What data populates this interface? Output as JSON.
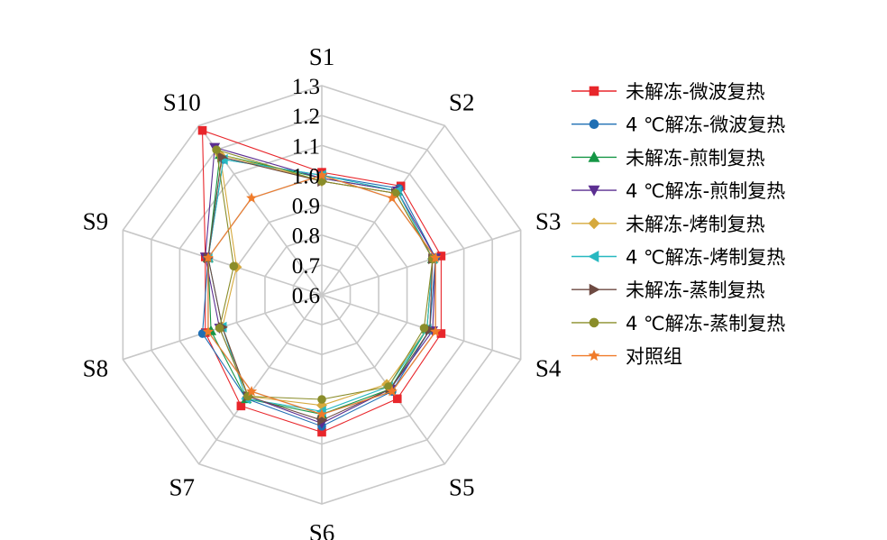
{
  "chart_data": {
    "type": "radar",
    "title": "",
    "categories": [
      "S1",
      "S2",
      "S3",
      "S4",
      "S5",
      "S6",
      "S7",
      "S8",
      "S9",
      "S10"
    ],
    "rlim": [
      0.6,
      1.3
    ],
    "tick_labels": [
      "0.6",
      "0.7",
      "0.8",
      "0.9",
      "1.0",
      "1.1",
      "1.2",
      "1.3"
    ],
    "tick_values": [
      0.6,
      0.7,
      0.8,
      0.9,
      1.0,
      1.1,
      1.2,
      1.3
    ],
    "grid": true,
    "legend_position": "right",
    "series": [
      {
        "name": "未解冻-微波复热",
        "color": "#e8262b",
        "marker": "square",
        "values": [
          1.01,
          1.05,
          1.02,
          1.02,
          1.03,
          1.06,
          1.06,
          1.01,
          1.01,
          1.28
        ]
      },
      {
        "name": "4 ℃解冻-微波复热",
        "color": "#1f6fb4",
        "marker": "circle",
        "values": [
          1.0,
          1.04,
          1.0,
          0.98,
          1.0,
          1.04,
          1.03,
          1.02,
          1.0,
          1.16
        ]
      },
      {
        "name": "未解冻-煎制复热",
        "color": "#159645",
        "marker": "triangle-up",
        "values": [
          0.99,
          1.03,
          0.99,
          0.97,
          0.99,
          1.0,
          1.03,
          0.99,
          1.0,
          1.18
        ]
      },
      {
        "name": "4 ℃解冻-煎制复热",
        "color": "#5b2e91",
        "marker": "triangle-down",
        "values": [
          0.99,
          1.03,
          1.0,
          0.99,
          0.99,
          1.03,
          1.02,
          0.96,
          1.01,
          1.21
        ]
      },
      {
        "name": "未解冻-烤制复热",
        "color": "#d6a93d",
        "marker": "diamond",
        "values": [
          0.98,
          1.02,
          0.99,
          0.97,
          0.97,
          0.97,
          1.02,
          0.95,
          0.9,
          1.18
        ]
      },
      {
        "name": "4 ℃解冻-烤制复热",
        "color": "#27b8c0",
        "marker": "triangle-left",
        "values": [
          1.0,
          1.03,
          0.99,
          0.97,
          0.98,
          0.99,
          1.03,
          0.95,
          1.0,
          1.16
        ]
      },
      {
        "name": "未解冻-蒸制复热",
        "color": "#6e4a42",
        "marker": "triangle-right",
        "values": [
          0.98,
          1.02,
          0.99,
          0.98,
          0.99,
          1.02,
          1.02,
          0.95,
          1.0,
          1.17
        ]
      },
      {
        "name": "4 ℃解冻-蒸制复热",
        "color": "#8a8d2a",
        "marker": "circle",
        "values": [
          0.98,
          1.02,
          0.99,
          0.96,
          0.98,
          0.95,
          1.02,
          0.96,
          0.91,
          1.2
        ]
      },
      {
        "name": "对照组",
        "color": "#f07b2a",
        "marker": "star",
        "values": [
          1.0,
          1.0,
          1.0,
          1.0,
          1.0,
          1.0,
          1.0,
          1.0,
          1.0,
          1.0
        ]
      }
    ]
  }
}
